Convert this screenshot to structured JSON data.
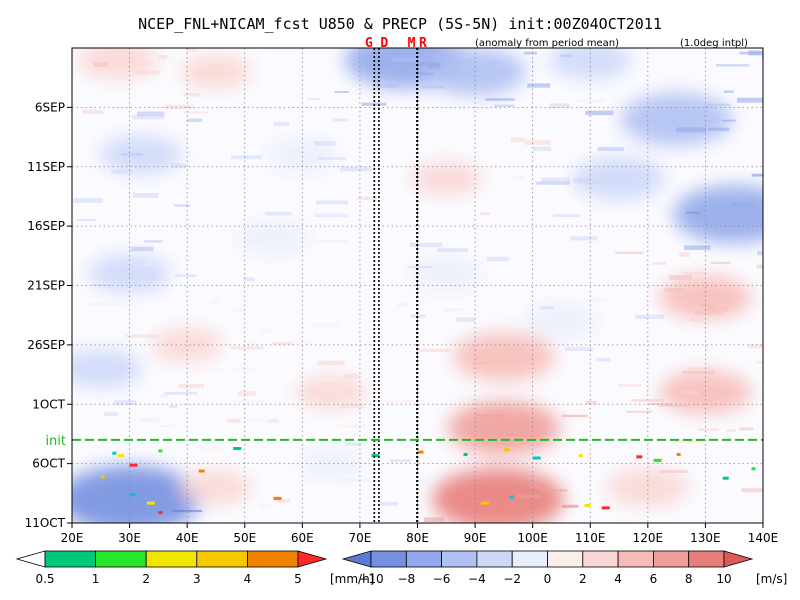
{
  "chart_data": {
    "type": "heatmap",
    "title": "NCEP_FNL+NICAM_fcst U850 & PRECP (5S-5N) init:00Z04OCT2011",
    "subtitle_left": "(anomaly from period mean)",
    "subtitle_right": "(1.0deg intpl)",
    "x_ticks": [
      {
        "value": 20,
        "label": "20E"
      },
      {
        "value": 30,
        "label": "30E"
      },
      {
        "value": 40,
        "label": "40E"
      },
      {
        "value": 50,
        "label": "50E"
      },
      {
        "value": 60,
        "label": "60E"
      },
      {
        "value": 70,
        "label": "70E"
      },
      {
        "value": 80,
        "label": "80E"
      },
      {
        "value": 90,
        "label": "90E"
      },
      {
        "value": 100,
        "label": "100E"
      },
      {
        "value": 110,
        "label": "110E"
      },
      {
        "value": 120,
        "label": "120E"
      },
      {
        "value": 130,
        "label": "130E"
      },
      {
        "value": 140,
        "label": "140E"
      }
    ],
    "xlim": [
      20,
      140
    ],
    "y_ticks": [
      {
        "day": 6,
        "label": "6SEP"
      },
      {
        "day": 11,
        "label": "11SEP"
      },
      {
        "day": 16,
        "label": "16SEP"
      },
      {
        "day": 21,
        "label": "21SEP"
      },
      {
        "day": 26,
        "label": "26SEP"
      },
      {
        "day": 31,
        "label": "1OCT"
      },
      {
        "day": 36,
        "label": "6OCT"
      },
      {
        "day": 41,
        "label": "11OCT"
      }
    ],
    "ylim_day": [
      1,
      41
    ],
    "y_axis_note": "days counted from 1SEP2011; time increases downward",
    "init_line": {
      "label": "init",
      "day": 34,
      "color": "#22bb22"
    },
    "vertical_markers": [
      {
        "label": "G",
        "lon": 72.5
      },
      {
        "label": "D",
        "lon": 73.3
      },
      {
        "label": "M",
        "lon": 79.9
      },
      {
        "label": "R",
        "lon": 80.0
      }
    ],
    "grid": true,
    "precip_colorbar": {
      "unit": "[mm/h]",
      "ticks": [
        "0.5",
        "1",
        "2",
        "3",
        "4",
        "5"
      ],
      "colors": [
        "#00c8c8",
        "#00c87a",
        "#28e628",
        "#f0e600",
        "#f5c800",
        "#f08200",
        "#ff2828"
      ]
    },
    "u850_colorbar": {
      "unit": "[m/s]",
      "ticks": [
        "−10",
        "−8",
        "−6",
        "−4",
        "−2",
        "0",
        "2",
        "4",
        "6",
        "8",
        "10"
      ],
      "colors": [
        "#5a7ad6",
        "#7590e0",
        "#92a8ea",
        "#b0c0f2",
        "#cdd8f8",
        "#eaeefc",
        "#fdeeee",
        "#fad6d4",
        "#f6bcb8",
        "#f09e9a",
        "#e87e7a",
        "#de5a5a"
      ]
    },
    "u850_field": {
      "description": "zonal wind anomaly (m/s) at representative points",
      "points": [
        {
          "lon": 28,
          "day": 2,
          "u": 3
        },
        {
          "lon": 45,
          "day": 3,
          "u": 2
        },
        {
          "lon": 78,
          "day": 2,
          "u": -7
        },
        {
          "lon": 90,
          "day": 3,
          "u": -5
        },
        {
          "lon": 110,
          "day": 2,
          "u": -3
        },
        {
          "lon": 125,
          "day": 7,
          "u": -6
        },
        {
          "lon": 135,
          "day": 15,
          "u": -7
        },
        {
          "lon": 115,
          "day": 12,
          "u": -4
        },
        {
          "lon": 32,
          "day": 10,
          "u": -3
        },
        {
          "lon": 60,
          "day": 10,
          "u": -2
        },
        {
          "lon": 85,
          "day": 12,
          "u": 2
        },
        {
          "lon": 30,
          "day": 20,
          "u": -3
        },
        {
          "lon": 55,
          "day": 17,
          "u": -2
        },
        {
          "lon": 85,
          "day": 20,
          "u": -2
        },
        {
          "lon": 130,
          "day": 22,
          "u": 4
        },
        {
          "lon": 105,
          "day": 24,
          "u": -2
        },
        {
          "lon": 40,
          "day": 26,
          "u": 2
        },
        {
          "lon": 95,
          "day": 27,
          "u": 5
        },
        {
          "lon": 130,
          "day": 30,
          "u": 4
        },
        {
          "lon": 25,
          "day": 28,
          "u": -3
        },
        {
          "lon": 65,
          "day": 30,
          "u": 2
        },
        {
          "lon": 95,
          "day": 33,
          "u": 6
        },
        {
          "lon": 30,
          "day": 39,
          "u": -9
        },
        {
          "lon": 45,
          "day": 38,
          "u": 2
        },
        {
          "lon": 94,
          "day": 39,
          "u": 8
        },
        {
          "lon": 120,
          "day": 38,
          "u": 3
        },
        {
          "lon": 65,
          "day": 36,
          "u": -1
        }
      ]
    }
  }
}
